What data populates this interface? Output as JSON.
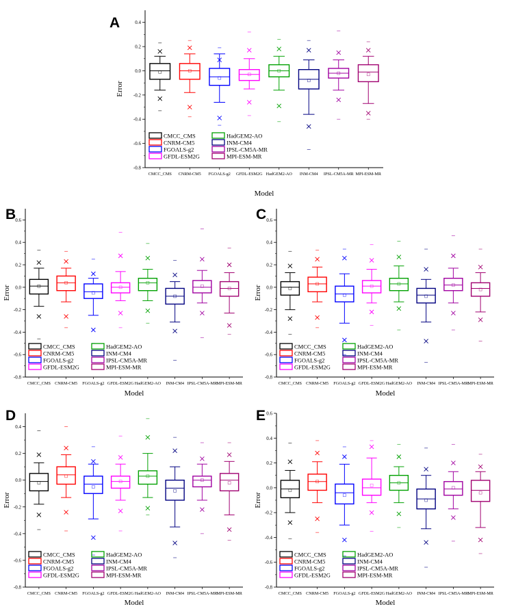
{
  "chart_data": [
    {
      "panel": "A",
      "type": "box",
      "title": "",
      "xlabel": "Model",
      "ylabel": "Error",
      "ylim": [
        -0.8,
        0.5
      ],
      "yticks": [
        -0.8,
        -0.6,
        -0.4,
        -0.2,
        0.0,
        0.2,
        0.4
      ],
      "tick_labels": [
        "-0.8",
        "-0.6",
        "-0.4",
        "-0.2",
        "0.0",
        "0.2",
        "0.4"
      ],
      "categories": [
        "CMCC_CMS",
        "CNRM-CM5",
        "FGOALS-g2",
        "GFDL-ESM2G",
        "HadGEM2-AO",
        "INM-CM4",
        "IPSL-CM5A-MR",
        "MPI-ESM-MR"
      ],
      "legend": [
        "CMCC_CMS",
        "HadGEM2-AO",
        "CNRM-CM5",
        "INM-CM4",
        "FGOALS-g2",
        "IPSL-CM5A-MR",
        "GFDL-ESM2G",
        "MPI-ESM-MR"
      ],
      "legend_colors": [
        "#000000",
        "#00a000",
        "#ff0000",
        "#000080",
        "#0000ff",
        "#a000a0",
        "#ff00ff",
        "#a00070"
      ],
      "series": [
        {
          "name": "CMCC_CMS",
          "color": "#000000",
          "min": -0.16,
          "q1": -0.07,
          "median": 0.0,
          "q3": 0.06,
          "max": 0.12,
          "mean": -0.01,
          "x1": [
            0.16,
            -0.23
          ],
          "x99": [
            0.23,
            -0.33
          ]
        },
        {
          "name": "CNRM-CM5",
          "color": "#ff0000",
          "min": -0.18,
          "q1": -0.07,
          "median": 0.0,
          "q3": 0.06,
          "max": 0.14,
          "mean": 0.0,
          "x1": [
            0.19,
            -0.3
          ],
          "x99": [
            0.25,
            -0.38
          ]
        },
        {
          "name": "FGOALS-g2",
          "color": "#0000ff",
          "min": -0.26,
          "q1": -0.12,
          "median": -0.05,
          "q3": 0.02,
          "max": 0.14,
          "mean": -0.06,
          "x1": [
            0.09,
            -0.39
          ],
          "x99": [
            0.19,
            -0.45
          ]
        },
        {
          "name": "GFDL-ESM2G",
          "color": "#ff00ff",
          "min": -0.15,
          "q1": -0.08,
          "median": -0.03,
          "q3": 0.01,
          "max": 0.1,
          "mean": -0.03,
          "x1": [
            0.17,
            -0.26
          ],
          "x99": [
            0.32,
            -0.37
          ]
        },
        {
          "name": "HadGEM2-AO",
          "color": "#00a000",
          "min": -0.16,
          "q1": -0.05,
          "median": 0.0,
          "q3": 0.05,
          "max": 0.12,
          "mean": 0.0,
          "x1": [
            0.18,
            -0.29
          ],
          "x99": [
            0.26,
            -0.42
          ]
        },
        {
          "name": "INM-CM4",
          "color": "#000080",
          "min": -0.36,
          "q1": -0.15,
          "median": -0.07,
          "q3": 0.01,
          "max": 0.09,
          "mean": -0.08,
          "x1": [
            0.17,
            -0.46
          ],
          "x99": [
            0.25,
            -0.65
          ]
        },
        {
          "name": "IPSL-CM5A-MR",
          "color": "#a000a0",
          "min": -0.16,
          "q1": -0.06,
          "median": -0.02,
          "q3": 0.02,
          "max": 0.09,
          "mean": -0.02,
          "x1": [
            0.15,
            -0.24
          ],
          "x99": [
            0.33,
            -0.4
          ]
        },
        {
          "name": "MPI-ESM-MR",
          "color": "#a00070",
          "min": -0.27,
          "q1": -0.09,
          "median": -0.01,
          "q3": 0.05,
          "max": 0.12,
          "mean": -0.03,
          "x1": [
            0.17,
            -0.35
          ],
          "x99": [
            0.24,
            -0.4
          ]
        }
      ]
    },
    {
      "panel": "B",
      "type": "box",
      "title": "",
      "xlabel": "Model",
      "ylabel": "Error",
      "ylim": [
        -0.8,
        0.7
      ],
      "yticks": [
        -0.8,
        -0.6,
        -0.4,
        -0.2,
        0.0,
        0.2,
        0.4,
        0.6
      ],
      "tick_labels": [
        "-0.8",
        "-0.6",
        "-0.4",
        "-0.2",
        "0.0",
        "0.2",
        "0.4",
        "0.6"
      ],
      "categories": [
        "CMCC_CMS",
        "CNRM-CM5",
        "FGOALS-g2",
        "GFDL-ESM2G",
        "HadGEM2-AO",
        "INM-CM4",
        "IPSL-CM5A-MR",
        "MPI-ESM-MR"
      ],
      "legend": [
        "CMCC_CMS",
        "HadGEM2-AO",
        "CNRM-CM5",
        "INM-CM4",
        "FGOALS-g2",
        "IPSL-CM5A-MR",
        "GFDL-ESM2G",
        "MPI-ESM-MR"
      ],
      "legend_colors": [
        "#000000",
        "#00a000",
        "#ff0000",
        "#000080",
        "#0000ff",
        "#a000a0",
        "#ff00ff",
        "#a00070"
      ],
      "series": [
        {
          "name": "CMCC_CMS",
          "color": "#000000",
          "min": -0.17,
          "q1": -0.06,
          "median": 0.01,
          "q3": 0.07,
          "max": 0.17,
          "mean": 0.01,
          "x1": [
            0.22,
            -0.26
          ],
          "x99": [
            0.33,
            -0.46
          ]
        },
        {
          "name": "CNRM-CM5",
          "color": "#ff0000",
          "min": -0.13,
          "q1": -0.03,
          "median": 0.04,
          "q3": 0.1,
          "max": 0.17,
          "mean": 0.04,
          "x1": [
            0.23,
            -0.26
          ],
          "x99": [
            0.32,
            -0.36
          ]
        },
        {
          "name": "FGOALS-g2",
          "color": "#0000ff",
          "min": -0.25,
          "q1": -0.1,
          "median": -0.04,
          "q3": 0.03,
          "max": 0.08,
          "mean": -0.05,
          "x1": [
            0.12,
            -0.38
          ],
          "x99": [
            0.25,
            -0.5
          ]
        },
        {
          "name": "GFDL-ESM2G",
          "color": "#ff00ff",
          "min": -0.12,
          "q1": -0.05,
          "median": 0.0,
          "q3": 0.04,
          "max": 0.14,
          "mean": 0.0,
          "x1": [
            0.28,
            -0.23
          ],
          "x99": [
            0.49,
            -0.36
          ]
        },
        {
          "name": "HadGEM2-AO",
          "color": "#00a000",
          "min": -0.12,
          "q1": -0.03,
          "median": 0.04,
          "q3": 0.08,
          "max": 0.16,
          "mean": 0.04,
          "x1": [
            0.26,
            -0.21
          ],
          "x99": [
            0.39,
            -0.32
          ]
        },
        {
          "name": "INM-CM4",
          "color": "#000080",
          "min": -0.31,
          "q1": -0.15,
          "median": -0.08,
          "q3": -0.01,
          "max": 0.05,
          "mean": -0.08,
          "x1": [
            0.11,
            -0.39
          ],
          "x99": [
            0.24,
            -0.65
          ]
        },
        {
          "name": "IPSL-CM5A-MR",
          "color": "#a000a0",
          "min": -0.14,
          "q1": -0.05,
          "median": 0.0,
          "q3": 0.06,
          "max": 0.15,
          "mean": 0.01,
          "x1": [
            0.25,
            -0.23
          ],
          "x99": [
            0.52,
            -0.45
          ]
        },
        {
          "name": "MPI-ESM-MR",
          "color": "#a00070",
          "min": -0.23,
          "q1": -0.08,
          "median": -0.01,
          "q3": 0.05,
          "max": 0.13,
          "mean": -0.01,
          "x1": [
            0.2,
            -0.34
          ],
          "x99": [
            0.35,
            -0.42
          ]
        }
      ]
    },
    {
      "panel": "C",
      "type": "box",
      "title": "",
      "xlabel": "Model",
      "ylabel": "Error",
      "ylim": [
        -0.8,
        0.7
      ],
      "yticks": [
        -0.8,
        -0.6,
        -0.4,
        -0.2,
        0.0,
        0.2,
        0.4,
        0.6
      ],
      "tick_labels": [
        "-0.8",
        "-0.6",
        "-0.4",
        "-0.2",
        "0.0",
        "0.2",
        "0.4",
        "0.6"
      ],
      "categories": [
        "CMCC_CMS",
        "CNRM-CM5",
        "FGOALS-g2",
        "GFDL-ESM2G",
        "HadGEM2-AO",
        "INM-CM4",
        "IPSL-CM5A-MR",
        "MPI-ESM-MR"
      ],
      "legend": [
        "CMCC_CMS",
        "HadGEM2-AO",
        "CNRM-CM5",
        "INM-CM4",
        "FGOALS-g2",
        "IPSL-CM5A-MR",
        "GFDL-ESM2G",
        "MPI-ESM-MR"
      ],
      "legend_colors": [
        "#000000",
        "#00a000",
        "#ff0000",
        "#000080",
        "#0000ff",
        "#a000a0",
        "#ff00ff",
        "#a00070"
      ],
      "series": [
        {
          "name": "CMCC_CMS",
          "color": "#000000",
          "min": -0.2,
          "q1": -0.07,
          "median": 0.0,
          "q3": 0.05,
          "max": 0.13,
          "mean": -0.01,
          "x1": [
            0.19,
            -0.28
          ],
          "x99": [
            0.32,
            -0.42
          ]
        },
        {
          "name": "CNRM-CM5",
          "color": "#ff0000",
          "min": -0.13,
          "q1": -0.04,
          "median": 0.03,
          "q3": 0.09,
          "max": 0.18,
          "mean": 0.03,
          "x1": [
            0.25,
            -0.27
          ],
          "x99": [
            0.33,
            -0.36
          ]
        },
        {
          "name": "FGOALS-g2",
          "color": "#0000ff",
          "min": -0.32,
          "q1": -0.13,
          "median": -0.06,
          "q3": 0.01,
          "max": 0.12,
          "mean": -0.07,
          "x1": [
            0.26,
            -0.47
          ],
          "x99": [
            0.34,
            -0.6
          ]
        },
        {
          "name": "GFDL-ESM2G",
          "color": "#ff00ff",
          "min": -0.14,
          "q1": -0.05,
          "median": 0.01,
          "q3": 0.06,
          "max": 0.16,
          "mean": 0.01,
          "x1": [
            0.24,
            -0.22
          ],
          "x99": [
            0.38,
            -0.34
          ]
        },
        {
          "name": "HadGEM2-AO",
          "color": "#00a000",
          "min": -0.13,
          "q1": -0.03,
          "median": 0.03,
          "q3": 0.08,
          "max": 0.19,
          "mean": 0.03,
          "x1": [
            0.27,
            -0.19
          ],
          "x99": [
            0.41,
            -0.38
          ]
        },
        {
          "name": "INM-CM4",
          "color": "#000080",
          "min": -0.31,
          "q1": -0.14,
          "median": -0.07,
          "q3": -0.01,
          "max": 0.07,
          "mean": -0.08,
          "x1": [
            0.16,
            -0.48
          ],
          "x99": [
            0.34,
            -0.67
          ]
        },
        {
          "name": "IPSL-CM5A-MR",
          "color": "#a000a0",
          "min": -0.14,
          "q1": -0.03,
          "median": 0.02,
          "q3": 0.08,
          "max": 0.17,
          "mean": 0.02,
          "x1": [
            0.28,
            -0.23
          ],
          "x99": [
            0.46,
            -0.38
          ]
        },
        {
          "name": "MPI-ESM-MR",
          "color": "#a00070",
          "min": -0.22,
          "q1": -0.08,
          "median": -0.01,
          "q3": 0.04,
          "max": 0.13,
          "mean": -0.02,
          "x1": [
            0.18,
            -0.29
          ],
          "x99": [
            0.34,
            -0.48
          ]
        }
      ]
    },
    {
      "panel": "D",
      "type": "box",
      "title": "",
      "xlabel": "Model",
      "ylabel": "Error",
      "ylim": [
        -0.8,
        0.5
      ],
      "yticks": [
        -0.8,
        -0.6,
        -0.4,
        -0.2,
        0.0,
        0.2,
        0.4
      ],
      "tick_labels": [
        "-0.8",
        "-0.6",
        "-0.4",
        "-0.2",
        "0.0",
        "0.2",
        "0.4"
      ],
      "categories": [
        "CMCC_CMS",
        "CNRM-CM5",
        "FGOALS-g2",
        "GFDL-ESM2G",
        "HadGEM2-AO",
        "INM-CM4",
        "IPSL-CM5A-MR",
        "MPI-ESM-MR"
      ],
      "legend": [
        "CMCC_CMS",
        "HadGEM2-AO",
        "CNRM-CM5",
        "INM-CM4",
        "FGOALS-g2",
        "IPSL-CM5A-MR",
        "GFDL-ESM2G",
        "MPI-ESM-MR"
      ],
      "legend_colors": [
        "#000000",
        "#00a000",
        "#ff0000",
        "#000080",
        "#0000ff",
        "#a000a0",
        "#ff00ff",
        "#a00070"
      ],
      "series": [
        {
          "name": "CMCC_CMS",
          "color": "#000000",
          "min": -0.18,
          "q1": -0.08,
          "median": -0.01,
          "q3": 0.05,
          "max": 0.13,
          "mean": -0.02,
          "x1": [
            0.19,
            -0.26
          ],
          "x99": [
            0.37,
            -0.37
          ]
        },
        {
          "name": "CNRM-CM5",
          "color": "#ff0000",
          "min": -0.13,
          "q1": -0.03,
          "median": 0.04,
          "q3": 0.1,
          "max": 0.19,
          "mean": 0.03,
          "x1": [
            0.24,
            -0.24
          ],
          "x99": [
            0.4,
            -0.38
          ]
        },
        {
          "name": "FGOALS-g2",
          "color": "#0000ff",
          "min": -0.29,
          "q1": -0.1,
          "median": -0.03,
          "q3": 0.03,
          "max": 0.12,
          "mean": -0.05,
          "x1": [
            0.14,
            -0.43
          ],
          "x99": [
            0.25,
            -0.56
          ]
        },
        {
          "name": "GFDL-ESM2G",
          "color": "#ff00ff",
          "min": -0.15,
          "q1": -0.06,
          "median": -0.01,
          "q3": 0.03,
          "max": 0.12,
          "mean": -0.01,
          "x1": [
            0.17,
            -0.23
          ],
          "x99": [
            0.33,
            -0.38
          ]
        },
        {
          "name": "HadGEM2-AO",
          "color": "#00a000",
          "min": -0.13,
          "q1": -0.03,
          "median": 0.03,
          "q3": 0.07,
          "max": 0.2,
          "mean": 0.03,
          "x1": [
            0.32,
            -0.21
          ],
          "x99": [
            0.46,
            -0.26
          ]
        },
        {
          "name": "INM-CM4",
          "color": "#000080",
          "min": -0.35,
          "q1": -0.15,
          "median": -0.06,
          "q3": 0.0,
          "max": 0.1,
          "mean": -0.08,
          "x1": [
            0.22,
            -0.47
          ],
          "x99": [
            0.32,
            -0.58
          ]
        },
        {
          "name": "IPSL-CM5A-MR",
          "color": "#a000a0",
          "min": -0.15,
          "q1": -0.05,
          "median": 0.0,
          "q3": 0.03,
          "max": 0.12,
          "mean": 0.0,
          "x1": [
            0.16,
            -0.22
          ],
          "x99": [
            0.28,
            -0.4
          ]
        },
        {
          "name": "MPI-ESM-MR",
          "color": "#a00070",
          "min": -0.26,
          "q1": -0.08,
          "median": 0.0,
          "q3": 0.05,
          "max": 0.14,
          "mean": -0.02,
          "x1": [
            0.19,
            -0.37
          ],
          "x99": [
            0.28,
            -0.45
          ]
        }
      ]
    },
    {
      "panel": "E",
      "type": "box",
      "title": "",
      "xlabel": "Model",
      "ylabel": "Error",
      "ylim": [
        -0.8,
        0.6
      ],
      "yticks": [
        -0.8,
        -0.6,
        -0.4,
        -0.2,
        0.0,
        0.2,
        0.4,
        0.6
      ],
      "tick_labels": [
        "-0.8",
        "-0.6",
        "-0.4",
        "-0.2",
        "0.0",
        "0.2",
        "0.4",
        "0.6"
      ],
      "categories": [
        "CMCC_CMS",
        "CNRM-CM5",
        "FGOALS-g2",
        "GFDL-ESM2G",
        "HadGEM2-AO",
        "INM-CM4",
        "IPSL-CM5A-MR",
        "MPI-ESM-MR"
      ],
      "legend": [
        "CMCC_CMS",
        "HadGEM2-AO",
        "CNRM-CM5",
        "INM-CM4",
        "FGOALS-g2",
        "IPSL-CM5A-MR",
        "GFDL-ESM2G",
        "MPI-ESM-MR"
      ],
      "legend_colors": [
        "#000000",
        "#00a000",
        "#ff0000",
        "#000080",
        "#0000ff",
        "#a000a0",
        "#ff00ff",
        "#a00070"
      ],
      "series": [
        {
          "name": "CMCC_CMS",
          "color": "#000000",
          "min": -0.2,
          "q1": -0.08,
          "median": -0.01,
          "q3": 0.06,
          "max": 0.14,
          "mean": -0.02,
          "x1": [
            0.21,
            -0.28
          ],
          "x99": [
            0.36,
            -0.41
          ]
        },
        {
          "name": "CNRM-CM5",
          "color": "#ff0000",
          "min": -0.12,
          "q1": -0.02,
          "median": 0.05,
          "q3": 0.11,
          "max": 0.21,
          "mean": 0.05,
          "x1": [
            0.28,
            -0.25
          ],
          "x99": [
            0.38,
            -0.36
          ]
        },
        {
          "name": "FGOALS-g2",
          "color": "#0000ff",
          "min": -0.3,
          "q1": -0.13,
          "median": -0.04,
          "q3": 0.03,
          "max": 0.19,
          "mean": -0.06,
          "x1": [
            0.25,
            -0.42
          ],
          "x99": [
            0.33,
            -0.55
          ]
        },
        {
          "name": "GFDL-ESM2G",
          "color": "#ff00ff",
          "min": -0.12,
          "q1": -0.06,
          "median": 0.0,
          "q3": 0.07,
          "max": 0.24,
          "mean": 0.02,
          "x1": [
            0.33,
            -0.2
          ],
          "x99": [
            0.38,
            -0.35
          ]
        },
        {
          "name": "HadGEM2-AO",
          "color": "#00a000",
          "min": -0.12,
          "q1": -0.02,
          "median": 0.04,
          "q3": 0.1,
          "max": 0.17,
          "mean": 0.04,
          "x1": [
            0.25,
            -0.21
          ],
          "x99": [
            0.35,
            -0.32
          ]
        },
        {
          "name": "INM-CM4",
          "color": "#000080",
          "min": -0.33,
          "q1": -0.17,
          "median": -0.09,
          "q3": -0.01,
          "max": 0.1,
          "mean": -0.1,
          "x1": [
            0.15,
            -0.44
          ],
          "x99": [
            0.32,
            -0.64
          ]
        },
        {
          "name": "IPSL-CM5A-MR",
          "color": "#a000a0",
          "min": -0.17,
          "q1": -0.06,
          "median": -0.01,
          "q3": 0.05,
          "max": 0.13,
          "mean": 0.0,
          "x1": [
            0.2,
            -0.24
          ],
          "x99": [
            0.35,
            -0.43
          ]
        },
        {
          "name": "MPI-ESM-MR",
          "color": "#a00070",
          "min": -0.32,
          "q1": -0.11,
          "median": -0.02,
          "q3": 0.06,
          "max": 0.13,
          "mean": -0.04,
          "x1": [
            0.17,
            -0.42
          ],
          "x99": [
            0.27,
            -0.53
          ]
        }
      ]
    }
  ]
}
